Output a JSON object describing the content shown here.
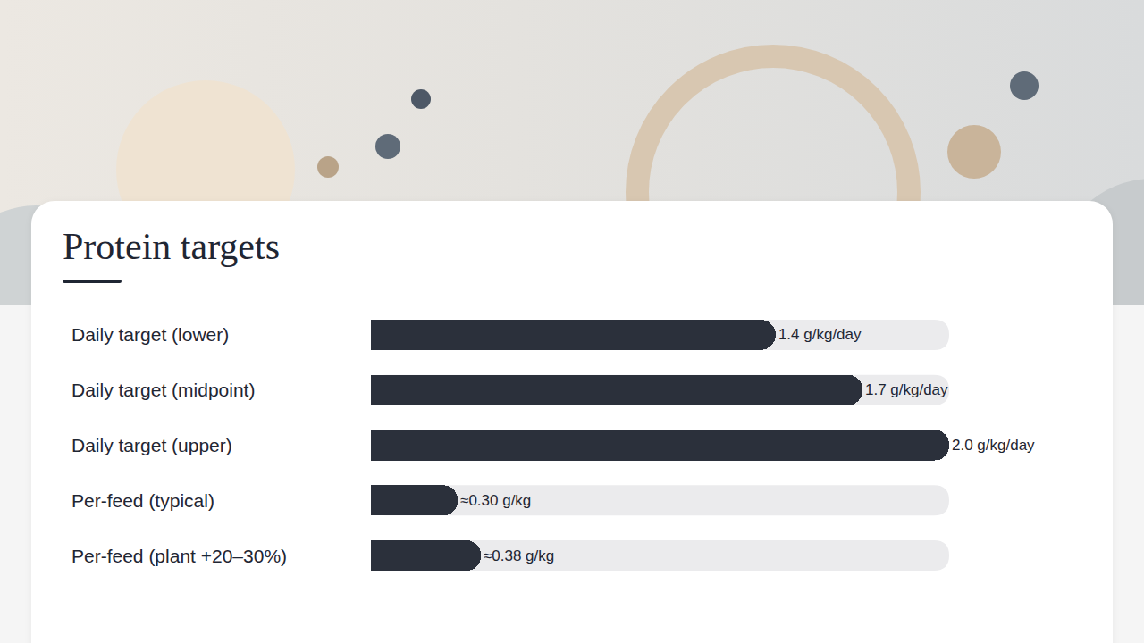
{
  "chart_data": {
    "type": "bar",
    "title": "Protein targets",
    "orientation": "horizontal",
    "categories": [
      "Daily target (lower)",
      "Daily target (midpoint)",
      "Daily target (upper)",
      "Per-feed (typical)",
      "Per-feed (plant +20–30%)"
    ],
    "values": [
      1.4,
      1.7,
      2.0,
      0.3,
      0.38
    ],
    "value_labels": [
      "1.4 g/kg/day",
      "1.7 g/kg/day",
      "2.0 g/kg/day",
      "≈0.30 g/kg",
      "≈0.38 g/kg"
    ],
    "data_labels": true,
    "color": "#2b303b",
    "xlim": [
      0,
      2.0
    ],
    "grid": false,
    "tick_labels": "y"
  }
}
